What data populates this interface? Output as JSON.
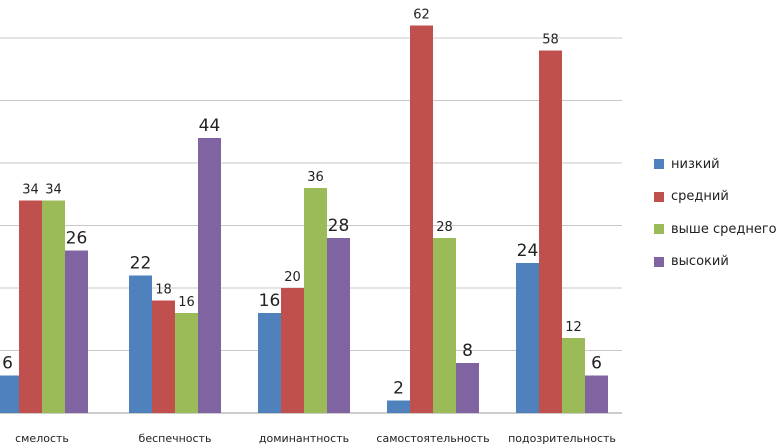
{
  "chart_data": {
    "type": "bar",
    "categories": [
      "смелость",
      "беспечность",
      "доминантность",
      "самостоятельность",
      "подозрительность"
    ],
    "series": [
      {
        "name": "низкий",
        "color": "#4F81BD",
        "values": [
          6,
          22,
          16,
          2,
          24
        ]
      },
      {
        "name": "средний",
        "color": "#C0504D",
        "values": [
          34,
          18,
          20,
          62,
          58
        ]
      },
      {
        "name": "выше среднего",
        "color": "#9BBB59",
        "values": [
          34,
          16,
          36,
          28,
          12
        ]
      },
      {
        "name": "высокий",
        "color": "#8064A2",
        "values": [
          26,
          44,
          28,
          8,
          6
        ]
      }
    ],
    "ylim": [
      0,
      60
    ],
    "grid": true,
    "legend_position": "right"
  }
}
